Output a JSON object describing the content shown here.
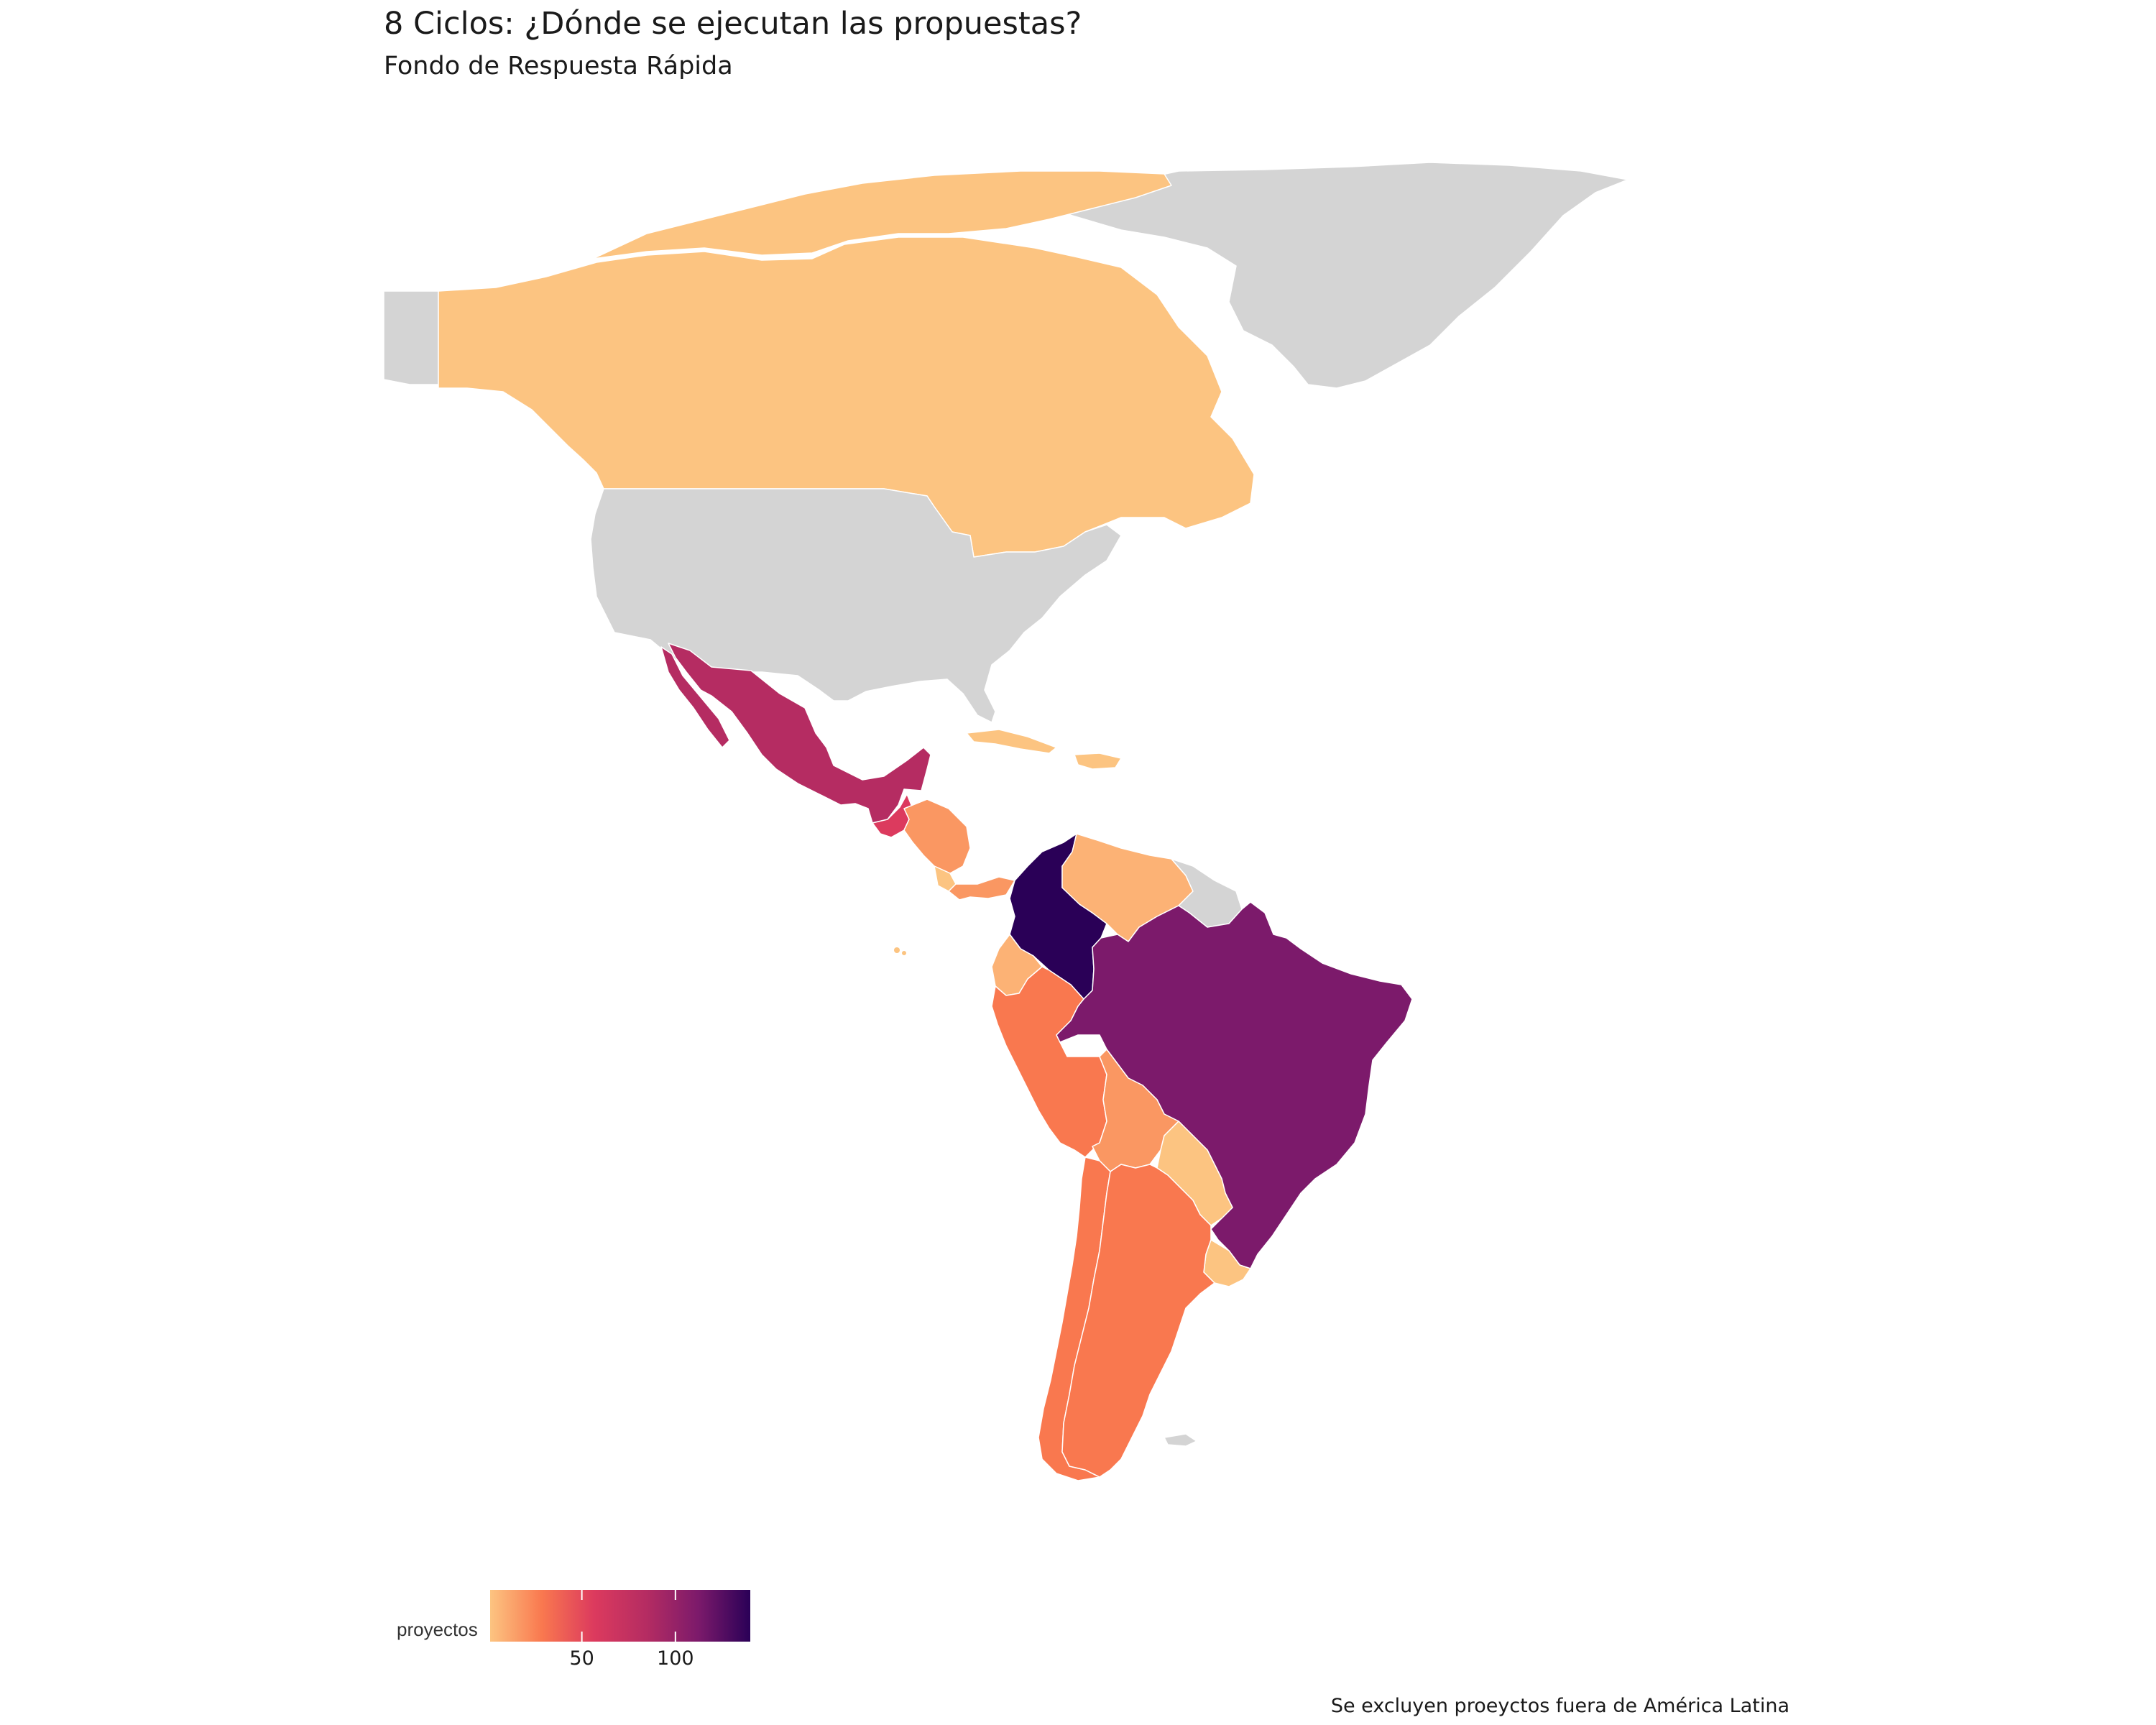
{
  "title": "8 Ciclos: ¿Dónde se ejecutan las propuestas?",
  "subtitle": "Fondo de Respuesta Rápida",
  "caption": "Se excluyen proeyctos fuera de América Latina",
  "legend": {
    "title": "proyectos",
    "ticks": [
      {
        "label": "50",
        "value": 50
      },
      {
        "label": "100",
        "value": 100
      }
    ],
    "range": [
      1,
      140
    ],
    "colors": [
      "#fcc481",
      "#f9784f",
      "#dc3a5e",
      "#b52c62",
      "#7c1a6b",
      "#2a0057"
    ]
  },
  "colors": {
    "no_data": "#d4d4d4",
    "background": "#ffffff"
  },
  "regions": [
    {
      "name": "Greenland",
      "color": "#d4d4d4"
    },
    {
      "name": "Alaska",
      "color": "#d4d4d4"
    },
    {
      "name": "Canada",
      "color": "#fcc481"
    },
    {
      "name": "United States",
      "color": "#d4d4d4"
    },
    {
      "name": "Mexico",
      "color": "#b52c62"
    },
    {
      "name": "Guatemala",
      "color": "#dc3a5e"
    },
    {
      "name": "Honduras",
      "color": "#fa9762"
    },
    {
      "name": "Nicaragua",
      "color": "#fa9762"
    },
    {
      "name": "Costa Rica",
      "color": "#fcc481"
    },
    {
      "name": "Panama",
      "color": "#fa9762"
    },
    {
      "name": "Cuba",
      "color": "#fcc481"
    },
    {
      "name": "Hispaniola",
      "color": "#fcc481"
    },
    {
      "name": "Colombia",
      "color": "#2a0057"
    },
    {
      "name": "Venezuela",
      "color": "#fcb275"
    },
    {
      "name": "Guyanas",
      "color": "#d4d4d4"
    },
    {
      "name": "Ecuador",
      "color": "#fcb275"
    },
    {
      "name": "Peru",
      "color": "#f9784f"
    },
    {
      "name": "Brazil",
      "color": "#7c1a6b"
    },
    {
      "name": "Bolivia",
      "color": "#fa9762"
    },
    {
      "name": "Paraguay",
      "color": "#fcc481"
    },
    {
      "name": "Uruguay",
      "color": "#fcc481"
    },
    {
      "name": "Chile",
      "color": "#f9784f"
    },
    {
      "name": "Argentina",
      "color": "#f9784f"
    },
    {
      "name": "Falklands",
      "color": "#d4d4d4"
    }
  ]
}
